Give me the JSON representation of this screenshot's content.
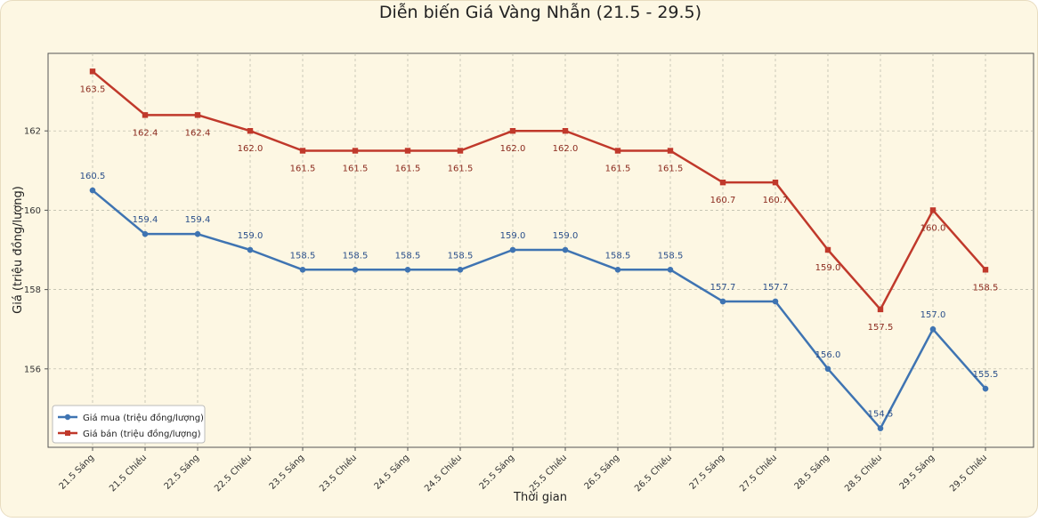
{
  "chart_data": {
    "type": "line",
    "title": "Diễn biến Giá Vàng Nhẫn (21.5 - 29.5)",
    "xlabel": "Thời gian",
    "ylabel": "Giá (triệu đồng/lượng)",
    "categories": [
      "21.5 Sáng",
      "21.5 Chiều",
      "22.5 Sáng",
      "22.5 Chiều",
      "23.5 Sáng",
      "23.5 Chiều",
      "24.5 Sáng",
      "24.5 Chiều",
      "25.5 Sáng",
      "25.5 Chiều",
      "26.5 Sáng",
      "26.5 Chiều",
      "27.5 Sáng",
      "27.5 Chiều",
      "28.5 Sáng",
      "28.5 Chiều",
      "29.5 Sáng",
      "29.5 Chiều"
    ],
    "ylim": [
      154.0,
      164.0
    ],
    "yticks": [
      156,
      158,
      160,
      162
    ],
    "grid": true,
    "legend_position": "bottom-left",
    "series": [
      {
        "name": "Giá mua (triệu đồng/lượng)",
        "color": "#3f74b2",
        "marker": "circle",
        "values": [
          160.5,
          159.4,
          159.4,
          159.0,
          158.5,
          158.5,
          158.5,
          158.5,
          159.0,
          159.0,
          158.5,
          158.5,
          157.7,
          157.7,
          156.0,
          154.5,
          157.0,
          155.5
        ],
        "labels": [
          "160.5",
          "159.4",
          "159.4",
          "159.0",
          "158.5",
          "158.5",
          "158.5",
          "158.5",
          "159.0",
          "159.0",
          "158.5",
          "158.5",
          "157.7",
          "157.7",
          "156.0",
          "154.5",
          "157.0",
          "155.5"
        ]
      },
      {
        "name": "Giá bán (triệu đồng/lượng)",
        "color": "#c0392b",
        "marker": "square",
        "values": [
          163.5,
          162.4,
          162.4,
          162.0,
          161.5,
          161.5,
          161.5,
          161.5,
          162.0,
          162.0,
          161.5,
          161.5,
          160.7,
          160.7,
          159.0,
          157.5,
          160.0,
          158.5
        ],
        "labels": [
          "163.5",
          "162.4",
          "162.4",
          "162.0",
          "161.5",
          "161.5",
          "161.5",
          "161.5",
          "162.0",
          "162.0",
          "161.5",
          "161.5",
          "160.7",
          "160.7",
          "159.0",
          "157.5",
          "160.0",
          "158.5"
        ]
      }
    ]
  }
}
